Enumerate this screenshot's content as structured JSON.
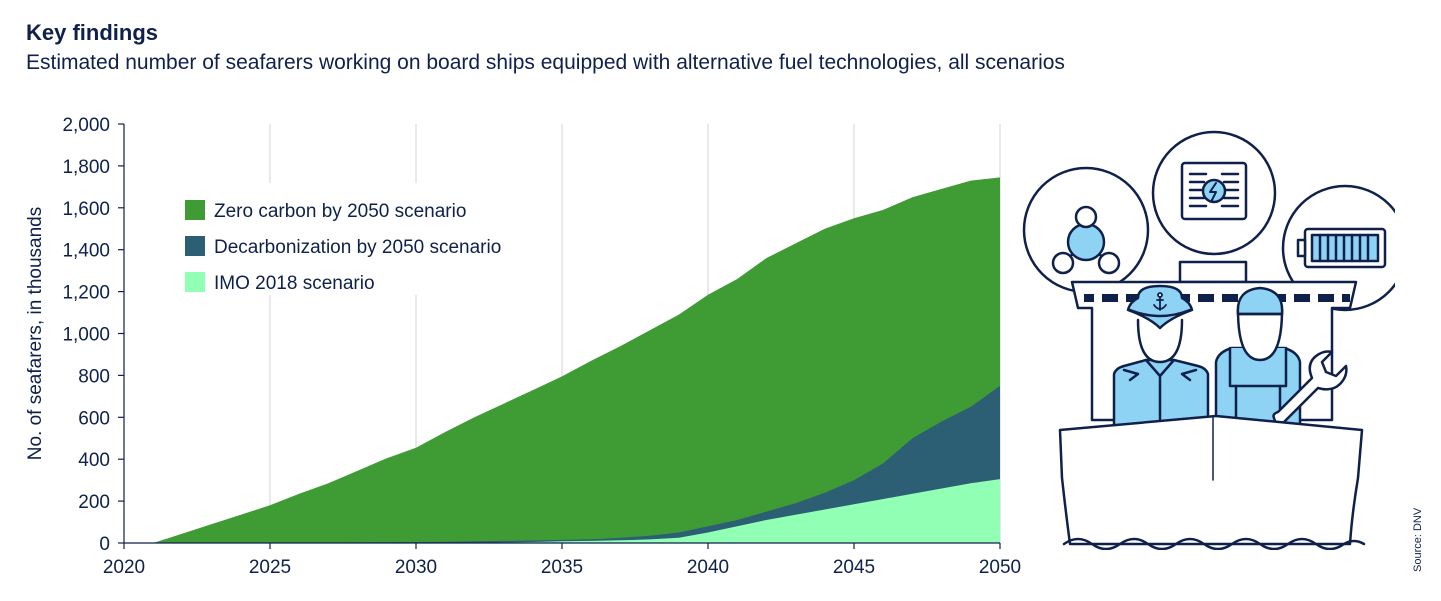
{
  "header": {
    "title": "Key findings",
    "subtitle": "Estimated number of seafarers working on board ships equipped with alternative fuel technologies, all scenarios"
  },
  "source": "Source: DNV",
  "illustration": {
    "icons": [
      "molecule-icon",
      "fuel-cell-icon",
      "battery-icon",
      "ship-icon",
      "captain-icon",
      "engineer-icon",
      "wrench-icon",
      "anchor-icon"
    ]
  },
  "chart_data": {
    "type": "area",
    "title": "",
    "xlabel": "",
    "ylabel": "No. of seafarers, in thousands",
    "xlim": [
      2020,
      2050
    ],
    "ylim": [
      0,
      2000
    ],
    "x_ticks": [
      2020,
      2025,
      2030,
      2035,
      2040,
      2045,
      2050
    ],
    "y_ticks": [
      0,
      200,
      400,
      600,
      800,
      1000,
      1200,
      1400,
      1600,
      1800,
      2000
    ],
    "y_tick_labels": [
      "0",
      "200",
      "400",
      "600",
      "800",
      "1,000",
      "1,200",
      "1,400",
      "1,600",
      "1,800",
      "2,000"
    ],
    "grid": "vertical",
    "stacked": false,
    "legend_position": "upper-left",
    "x": [
      2020,
      2021,
      2022,
      2023,
      2024,
      2025,
      2026,
      2027,
      2028,
      2029,
      2030,
      2031,
      2032,
      2033,
      2034,
      2035,
      2036,
      2037,
      2038,
      2039,
      2040,
      2041,
      2042,
      2043,
      2044,
      2045,
      2046,
      2047,
      2048,
      2049,
      2050
    ],
    "series": [
      {
        "name": "Zero carbon by 2050 scenario",
        "color": "#3f9c35",
        "values": [
          0,
          0,
          45,
          90,
          135,
          180,
          235,
          285,
          345,
          405,
          455,
          530,
          600,
          665,
          730,
          795,
          870,
          940,
          1015,
          1090,
          1185,
          1260,
          1360,
          1430,
          1500,
          1550,
          1590,
          1650,
          1690,
          1730,
          1745
        ]
      },
      {
        "name": "Decarbonization by 2050 scenario",
        "color": "#2c5f73",
        "values": [
          0,
          0,
          0,
          0,
          0,
          0,
          0,
          2,
          3,
          4,
          5,
          6,
          8,
          10,
          12,
          15,
          18,
          25,
          35,
          50,
          80,
          110,
          150,
          190,
          240,
          300,
          380,
          500,
          580,
          650,
          750
        ]
      },
      {
        "name": "IMO 2018 scenario",
        "color": "#91ffb4",
        "values": [
          0,
          0,
          0,
          0,
          0,
          0,
          0,
          0,
          0,
          0,
          0,
          0,
          0,
          3,
          5,
          8,
          10,
          13,
          17,
          25,
          50,
          80,
          110,
          135,
          160,
          185,
          210,
          235,
          260,
          285,
          305
        ]
      }
    ]
  }
}
